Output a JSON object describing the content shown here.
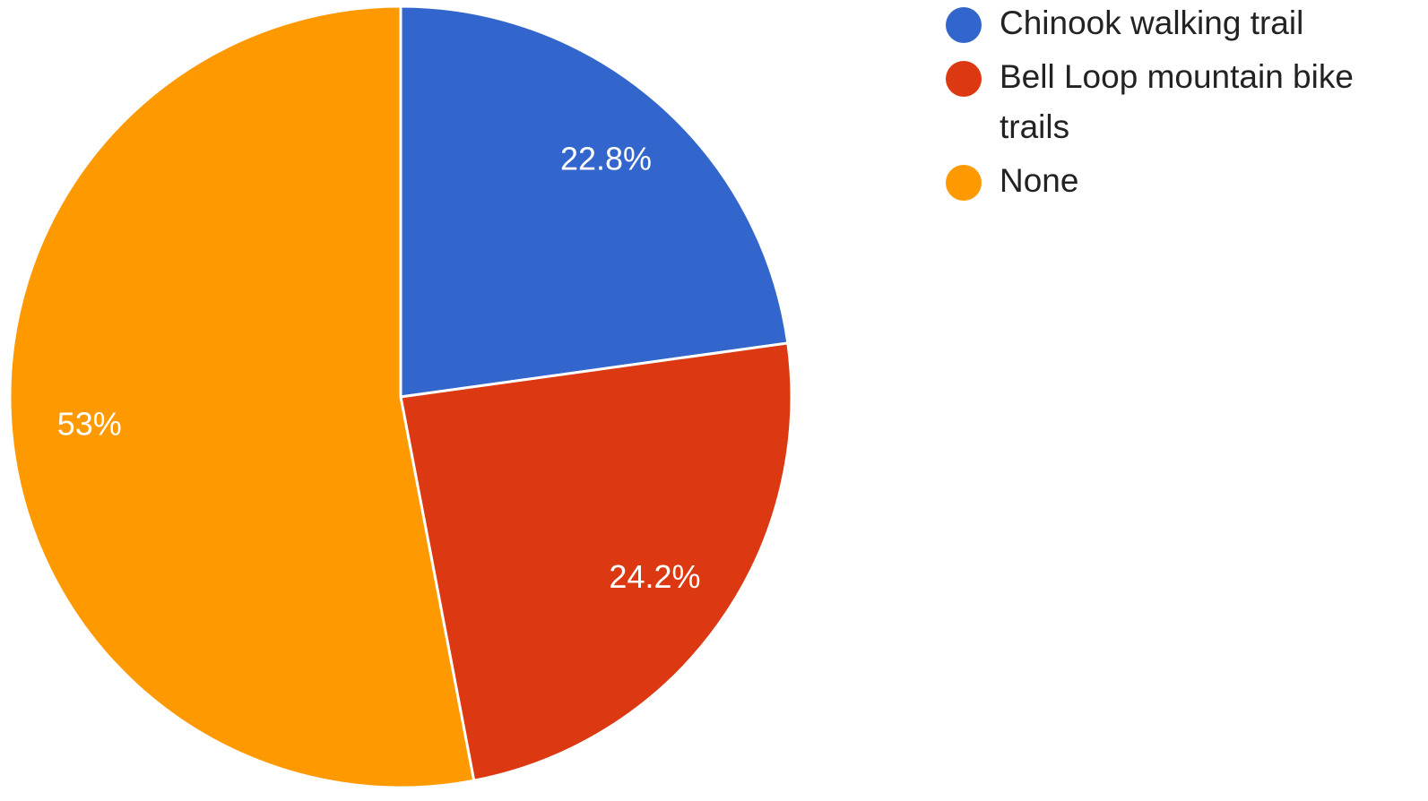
{
  "chart_data": {
    "type": "pie",
    "categories": [
      "Chinook walking trail",
      "Bell Loop mountain bike trails",
      "None"
    ],
    "values": [
      22.8,
      24.2,
      53
    ],
    "value_labels": [
      "22.8%",
      "24.2%",
      "53%"
    ],
    "colors": [
      "#3366cc",
      "#dc3912",
      "#ff9900"
    ],
    "legend": "right"
  }
}
